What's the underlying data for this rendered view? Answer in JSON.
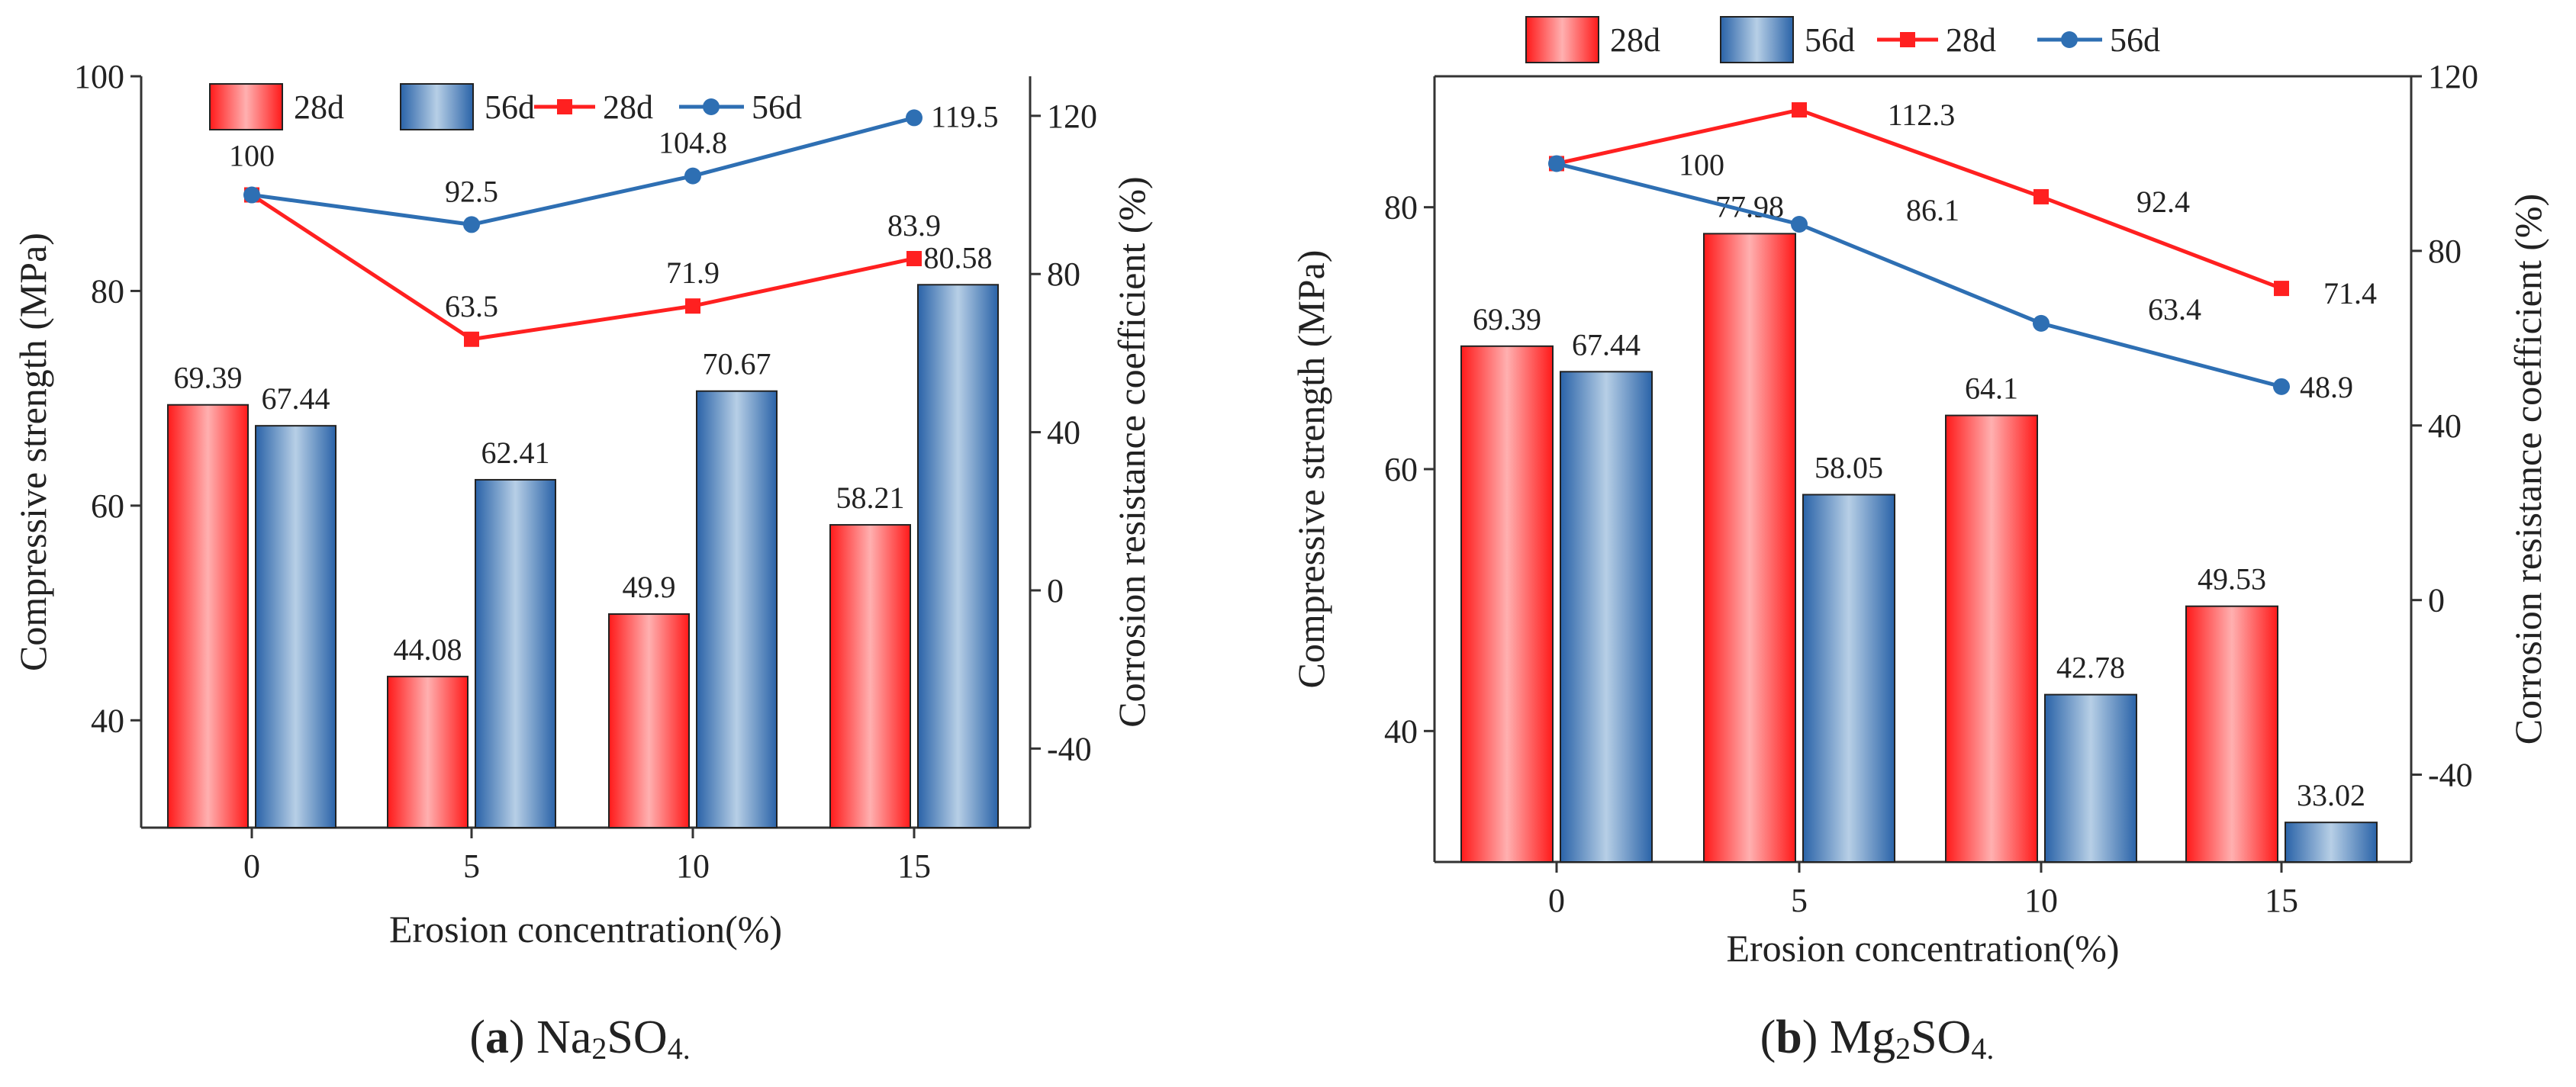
{
  "colors": {
    "bar_28d_edge": "#ff1a1a",
    "bar_28d_mid": "#ffb0b0",
    "bar_56d_edge": "#2a63a8",
    "bar_56d_mid": "#b7cfe6",
    "line_28d": "#ff2020",
    "line_56d": "#2e6fb3"
  },
  "chart_data": [
    {
      "type": "bar+line",
      "caption": {
        "letter": "a",
        "text": "Na",
        "sub1": "2",
        "mid": "SO",
        "sub2": "4.",
        "open": "(",
        "close": ")"
      },
      "xlabel": "Erosion concentration(%)",
      "ylabel": "Compressive strength (MPa)",
      "y2label": "Corrosion resistance coefficient (%)",
      "categories": [
        "0",
        "5",
        "10",
        "15"
      ],
      "ylim": [
        30,
        100
      ],
      "yticks": [
        "40",
        "60",
        "80",
        "100"
      ],
      "y2lim": [
        -60,
        130
      ],
      "y2ticks": [
        "-40",
        "0",
        "40",
        "80",
        "120"
      ],
      "legend": [
        "28d",
        "56d",
        "28d",
        "56d"
      ],
      "legend_position": "top",
      "bars": [
        {
          "name": "28d",
          "values": [
            69.39,
            44.08,
            49.9,
            58.21
          ],
          "labels": [
            "69.39",
            "44.08",
            "49.9",
            "58.21"
          ]
        },
        {
          "name": "56d",
          "values": [
            67.44,
            62.41,
            70.67,
            80.58
          ],
          "labels": [
            "67.44",
            "62.41",
            "70.67",
            "80.58"
          ]
        }
      ],
      "lines": [
        {
          "name": "28d",
          "values": [
            100,
            63.5,
            71.9,
            83.9
          ],
          "labels": [
            "100",
            "63.5",
            "71.9",
            "83.9"
          ]
        },
        {
          "name": "56d",
          "values": [
            100,
            92.5,
            104.8,
            119.5
          ],
          "labels": [
            "",
            "92.5",
            "104.8",
            "119.5"
          ]
        }
      ]
    },
    {
      "type": "bar+line",
      "caption": {
        "letter": "b",
        "text": "Mg",
        "sub1": "2",
        "mid": "SO",
        "sub2": "4.",
        "open": "(",
        "close": ")"
      },
      "xlabel": "Erosion concentration(%)",
      "ylabel": "Compressive strength (MPa)",
      "y2label": "Corrosion resistance coefficient (%)",
      "categories": [
        "0",
        "5",
        "10",
        "15"
      ],
      "ylim": [
        30,
        90
      ],
      "yticks": [
        "40",
        "60",
        "80"
      ],
      "y2lim": [
        -60,
        120
      ],
      "y2ticks": [
        "-40",
        "0",
        "40",
        "80",
        "120"
      ],
      "legend": [
        "28d",
        "56d",
        "28d",
        "56d"
      ],
      "legend_position": "top",
      "bars": [
        {
          "name": "28d",
          "values": [
            69.39,
            77.98,
            64.1,
            49.53
          ],
          "labels": [
            "69.39",
            "77.98",
            "64.1",
            "49.53"
          ]
        },
        {
          "name": "56d",
          "values": [
            67.44,
            58.05,
            42.78,
            33.02
          ],
          "labels": [
            "67.44",
            "58.05",
            "42.78",
            "33.02"
          ]
        }
      ],
      "lines": [
        {
          "name": "28d",
          "values": [
            100,
            112.3,
            92.4,
            71.4
          ],
          "labels": [
            "",
            "112.3",
            "92.4",
            "71.4"
          ]
        },
        {
          "name": "56d",
          "values": [
            100,
            86.1,
            63.4,
            48.9
          ],
          "labels": [
            "100",
            "86.1",
            "63.4",
            "48.9"
          ]
        }
      ]
    }
  ]
}
